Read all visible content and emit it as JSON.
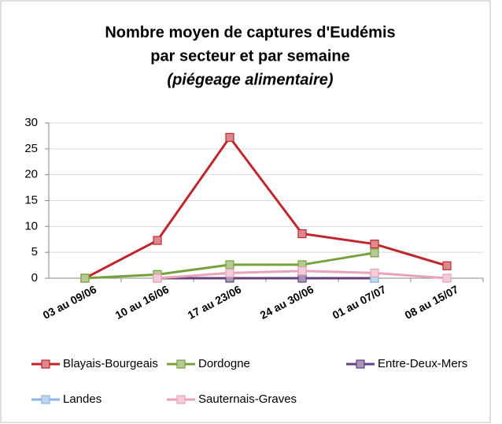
{
  "chart_data": {
    "type": "line",
    "title": [
      "Nombre moyen de captures d'Eudémis",
      "par secteur et par semaine"
    ],
    "subtitle": "(piégeage alimentaire)",
    "categories": [
      "03 au 09/06",
      "10 au 16/06",
      "17 au 23/06",
      "24 au 30/06",
      "01 au 07/07",
      "08 au 15/07"
    ],
    "series": [
      {
        "name": "Blayais-Bourgeais",
        "color": "#c0262d",
        "values": [
          0,
          7.3,
          27.2,
          8.6,
          6.6,
          2.4
        ]
      },
      {
        "name": "Dordogne",
        "color": "#77a13d",
        "values": [
          0,
          0.7,
          2.6,
          2.6,
          4.9,
          null
        ]
      },
      {
        "name": "Entre-Deux-Mers",
        "color": "#65407f",
        "values": [
          null,
          0,
          0,
          0,
          0,
          null
        ]
      },
      {
        "name": "Landes",
        "color": "#8db3e2",
        "values": [
          null,
          null,
          null,
          null,
          0,
          null
        ]
      },
      {
        "name": "Sauternais-Graves",
        "color": "#e8a2b9",
        "values": [
          null,
          0,
          1.0,
          1.4,
          1.0,
          0
        ]
      }
    ],
    "ylim": [
      0,
      30
    ],
    "yticks": [
      0,
      5,
      10,
      15,
      20,
      25,
      30
    ],
    "grid": true,
    "legend": "bottom"
  }
}
